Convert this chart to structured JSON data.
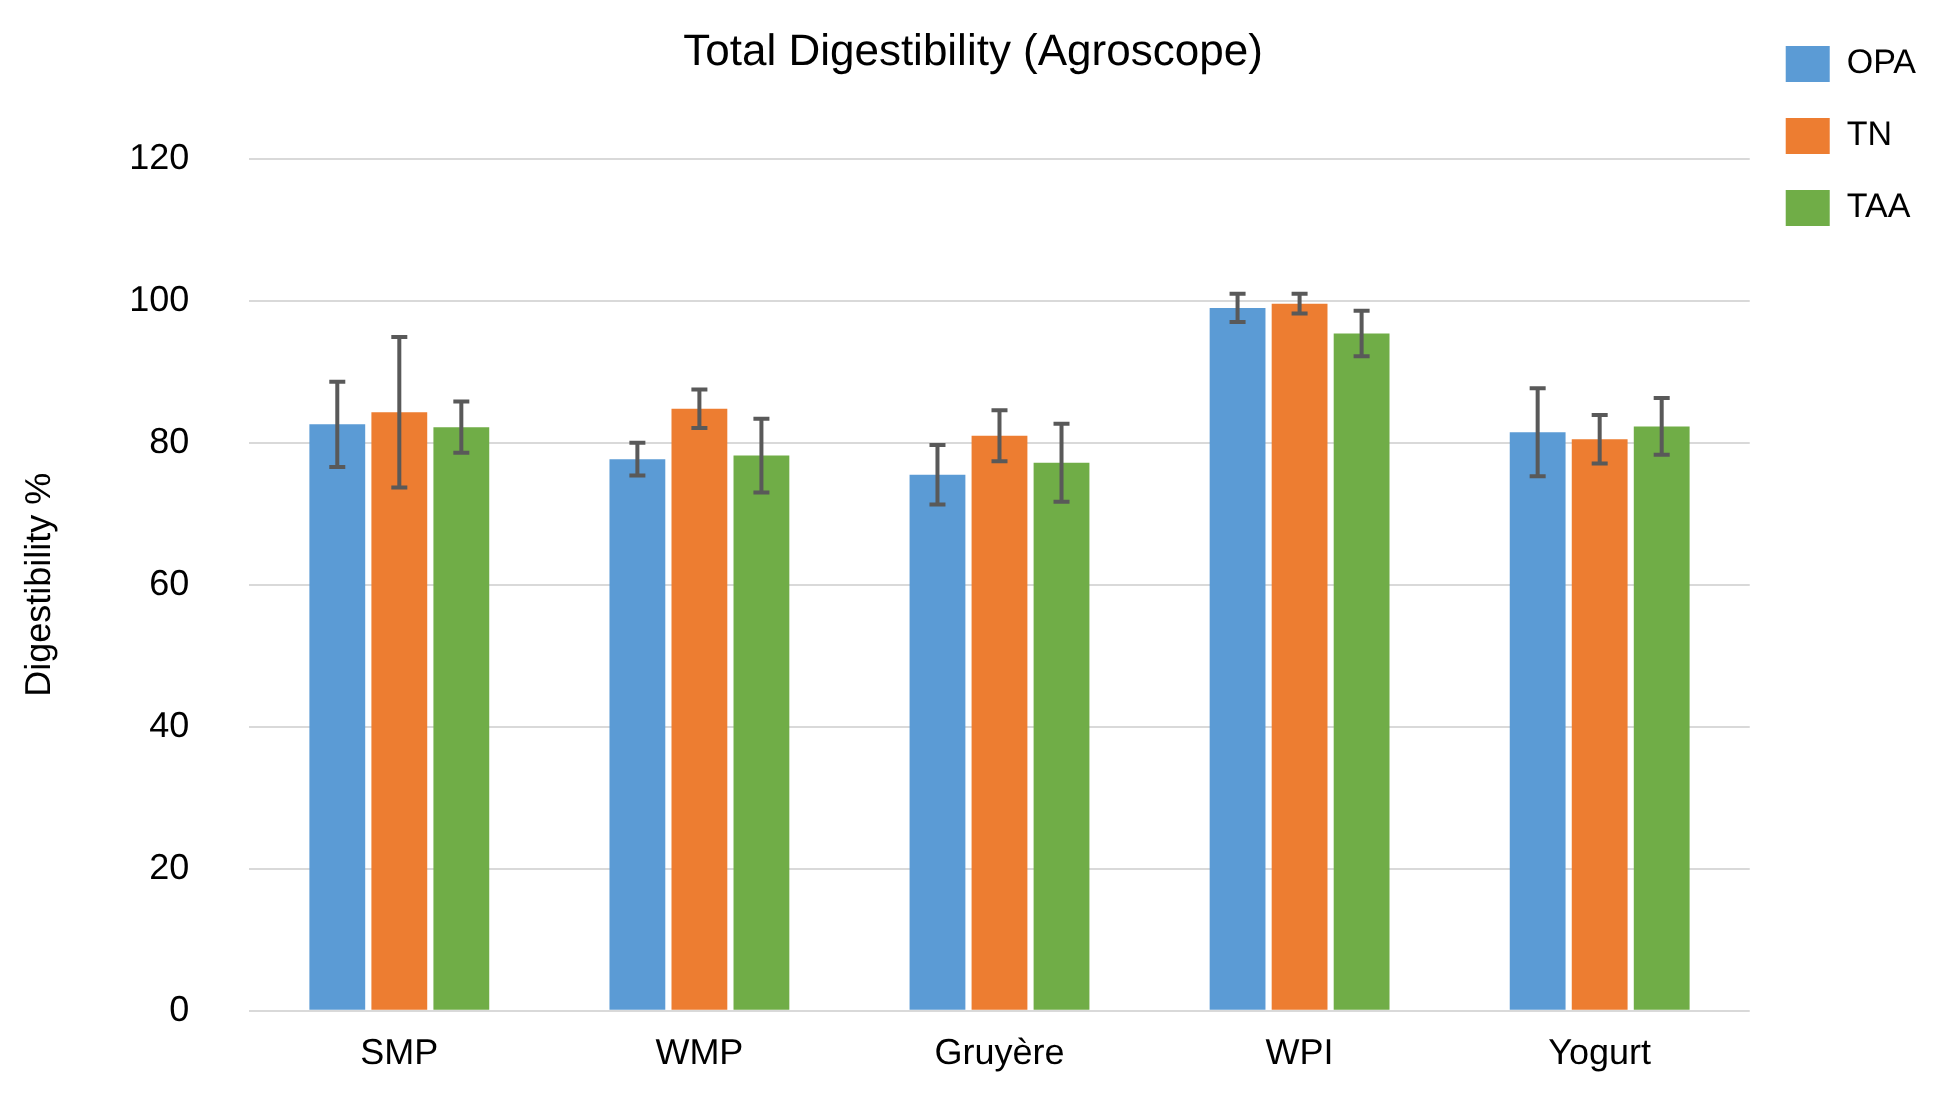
{
  "chart_data": {
    "type": "bar",
    "title": "Total Digestibility (Agroscope)",
    "ylabel": "Digestibility %",
    "categories": [
      "SMP",
      "WMP",
      "Gruyère",
      "WPI",
      "Yogurt"
    ],
    "series": [
      {
        "name": "OPA",
        "color": "#5b9bd5",
        "values": [
          82.6,
          77.7,
          75.5,
          99,
          81.5
        ],
        "errors": [
          6,
          2.3,
          4.2,
          2,
          6.2
        ]
      },
      {
        "name": "TN",
        "color": "#ed7d31",
        "values": [
          84.3,
          84.8,
          81,
          99.6,
          80.5
        ],
        "errors": [
          10.6,
          2.7,
          3.6,
          1.4,
          3.4
        ]
      },
      {
        "name": "TAA",
        "color": "#70ad47",
        "values": [
          82.2,
          78.2,
          77.2,
          95.4,
          82.3
        ],
        "errors": [
          3.6,
          5.2,
          5.5,
          3.2,
          4
        ]
      }
    ],
    "ylim": [
      0,
      120
    ],
    "yticks": [
      0,
      20,
      40,
      60,
      80,
      100,
      120
    ],
    "grid": "y",
    "legend": "top right"
  }
}
